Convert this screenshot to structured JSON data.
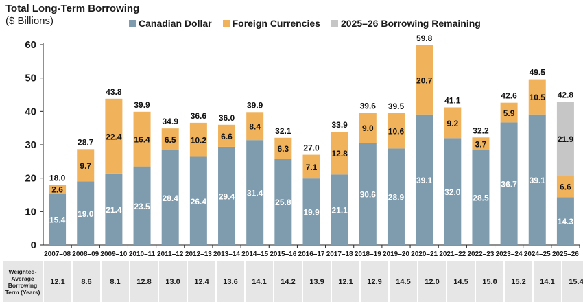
{
  "colors": {
    "canadian": "#7f9cae",
    "foreign": "#f0b25a",
    "remaining": "#c6c6c6",
    "axis": "#222222",
    "table_bg": "#e6e6e6"
  },
  "legend": [
    {
      "name": "Canadian Dollar",
      "color": "#7f9cae"
    },
    {
      "name": "Foreign Currencies",
      "color": "#f0b25a"
    },
    {
      "name": "2025–26 Borrowing Remaining",
      "color": "#c6c6c6"
    }
  ],
  "table": {
    "label": "Weighted-Average Borrowing Term (Years)",
    "values": [
      "12.1",
      "8.6",
      "8.1",
      "12.8",
      "13.0",
      "12.4",
      "13.6",
      "14.1",
      "14.2",
      "13.9",
      "12.1",
      "12.9",
      "14.5",
      "12.0",
      "14.5",
      "15.0",
      "15.2",
      "14.1",
      "15.4"
    ]
  },
  "chart_data": {
    "type": "bar",
    "stacked": true,
    "title": "Total Long-Term Borrowing",
    "subtitle": "($ Billions)",
    "ylim": [
      0,
      60
    ],
    "yticks": [
      0,
      10,
      20,
      30,
      40,
      50,
      60
    ],
    "grid": false,
    "legend_position": "top",
    "categories": [
      "2007–08",
      "2008–09",
      "2009–10",
      "2010–11",
      "2011–12",
      "2012–13",
      "2013–14",
      "2014–15",
      "2015–16",
      "2016–17",
      "2017–18",
      "2018–19",
      "2019–20",
      "2020–21",
      "2021–22",
      "2022–23",
      "2023–24",
      "2024–25",
      "2025–26"
    ],
    "series": [
      {
        "name": "Canadian Dollar",
        "values": [
          15.4,
          19.0,
          21.4,
          23.5,
          28.4,
          26.4,
          29.4,
          31.4,
          25.8,
          19.9,
          21.1,
          30.6,
          28.9,
          39.1,
          32.0,
          28.5,
          36.7,
          39.1,
          14.3
        ]
      },
      {
        "name": "Foreign Currencies",
        "values": [
          2.6,
          9.7,
          22.4,
          16.4,
          6.5,
          10.2,
          6.6,
          8.4,
          6.3,
          7.1,
          12.8,
          9.0,
          10.6,
          20.7,
          9.2,
          3.7,
          5.9,
          10.5,
          6.6
        ]
      },
      {
        "name": "2025–26 Borrowing Remaining",
        "values": [
          null,
          null,
          null,
          null,
          null,
          null,
          null,
          null,
          null,
          null,
          null,
          null,
          null,
          null,
          null,
          null,
          null,
          null,
          21.9
        ]
      }
    ],
    "value_labels": {
      "Canadian Dollar": [
        "15.4",
        "19.0",
        "21.4",
        "23.5",
        "28.4",
        "26.4",
        "29.4",
        "31.4",
        "25.8",
        "19.9",
        "21.1",
        "30.6",
        "28.9",
        "39.1",
        "32.0",
        "28.5",
        "36.7",
        "39.1",
        "14.3"
      ],
      "Foreign Currencies": [
        "2.6",
        "9.7",
        "22.4",
        "16.4",
        "6.5",
        "10.2",
        "6.6",
        "8.4",
        "6.3",
        "7.1",
        "12.8",
        "9.0",
        "10.6",
        "20.7",
        "9.2",
        "3.7",
        "5.9",
        "10.5",
        "6.6"
      ],
      "2025–26 Borrowing Remaining": [
        null,
        null,
        null,
        null,
        null,
        null,
        null,
        null,
        null,
        null,
        null,
        null,
        null,
        null,
        null,
        null,
        null,
        null,
        "21.9"
      ]
    },
    "totals": [
      "18.0",
      "28.7",
      "43.8",
      "39.9",
      "34.9",
      "36.6",
      "36.0",
      "39.9",
      "32.1",
      "27.0",
      "33.9",
      "39.6",
      "39.5",
      "59.8",
      "41.1",
      "32.2",
      "42.6",
      "49.5",
      "42.8"
    ]
  }
}
